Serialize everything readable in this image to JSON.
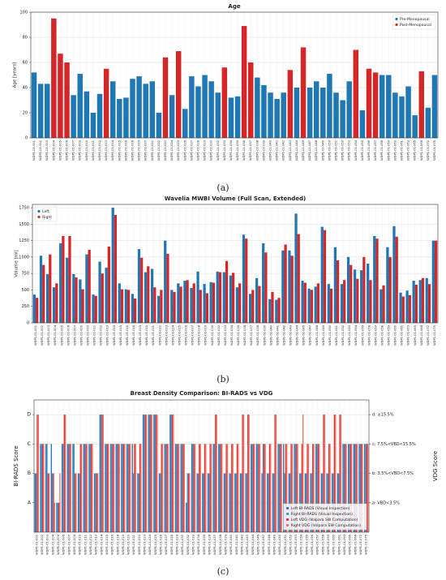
{
  "chart_data": [
    {
      "type": "bar",
      "title": "Age",
      "caption": "(a)",
      "y_label": "Age [years]",
      "barmode": "overlay",
      "grid": true,
      "legend": "upper right",
      "categories": [
        "WDP1-01-001",
        "WDP1-01-002",
        "WDP1-01-003",
        "WDP1-01-004",
        "WDP1-01-005",
        "WDP1-01-006",
        "WDP1-01-007",
        "WDP1-01-009",
        "WDP1-01-010",
        "WDP1-01-011",
        "WDP1-01-012",
        "WDP1-01-013",
        "WDP1-01-014",
        "WDP1-01-015",
        "WDP1-01-016",
        "WDP1-01-018",
        "WDP1-01-019",
        "WDP1-01-020",
        "WDP1-01-021",
        "WDP1-01-022",
        "WDP1-01-023",
        "WDP1-01-024",
        "WDP1-01-025",
        "WDP1-01-026",
        "WDP1-01-027",
        "WDP1-01-028",
        "WDP1-01-029",
        "WDP1-01-030",
        "WDP1-01-032",
        "WDP1-01-033",
        "WDP1-01-034",
        "WDP1-01-035",
        "WDP1-01-036",
        "WDP1-01-037",
        "WDP1-01-038",
        "WDP1-01-039",
        "WDP1-01-040",
        "WDP1-01-041",
        "WDP1-01-042",
        "WDP1-01-043",
        "WDP1-01-044",
        "WDP1-01-045",
        "WDP1-01-047",
        "WDP1-01-048",
        "WDP1-01-049",
        "WDP1-01-050",
        "WDP1-01-051",
        "WDP1-01-052",
        "WDP1-01-053",
        "WDP1-01-054",
        "WDP1-01-055",
        "WDP1-01-056",
        "WDP1-01-057",
        "WDP1-01-058",
        "WDP1-01-059",
        "WDP1-01-060",
        "WDP1-01-061",
        "WDP1-01-063",
        "WDP1-01-065",
        "WDP1-01-068",
        "WDP1-01-072",
        "WDP1-01-075"
      ],
      "ylim": [
        0,
        100
      ],
      "yticks": [
        0,
        20,
        40,
        60,
        80,
        100
      ],
      "series": [
        {
          "name": "Pre-Menopausal",
          "color": "#1f77b4",
          "values": [
            52,
            43,
            43,
            null,
            null,
            null,
            34,
            51,
            37,
            20,
            35,
            null,
            45,
            31,
            32,
            47,
            49,
            43,
            45,
            20,
            null,
            34,
            null,
            23,
            49,
            41,
            50,
            45,
            36,
            null,
            32,
            33,
            null,
            null,
            48,
            42,
            36,
            31,
            36,
            null,
            40,
            null,
            40,
            45,
            40,
            51,
            36,
            30,
            45,
            null,
            22,
            null,
            null,
            50,
            50,
            36,
            33,
            41,
            18,
            null,
            24,
            50
          ]
        },
        {
          "name": "Post-Menopausal",
          "color": "#d62728",
          "values": [
            null,
            null,
            null,
            95,
            67,
            60,
            null,
            null,
            null,
            null,
            null,
            55,
            null,
            null,
            null,
            null,
            null,
            null,
            null,
            null,
            64,
            null,
            69,
            null,
            null,
            null,
            null,
            null,
            null,
            56,
            null,
            null,
            89,
            60,
            null,
            null,
            null,
            null,
            null,
            54,
            null,
            72,
            null,
            null,
            null,
            null,
            null,
            null,
            null,
            70,
            null,
            55,
            52,
            null,
            null,
            null,
            null,
            null,
            null,
            53,
            null,
            null
          ]
        }
      ]
    },
    {
      "type": "bar",
      "title": "Wavelia MWBI Volume (Full Scan, Extended)",
      "caption": "(b)",
      "y_label": "Volume [ml]",
      "barmode": "group",
      "grid": true,
      "legend": "upper left",
      "categories": [
        "WDP1-01-001",
        "WDP1-01-002",
        "WDP1-01-003",
        "WDP1-01-004",
        "WDP1-01-005",
        "WDP1-01-006",
        "WDP1-01-007",
        "WDP1-01-009",
        "WDP1-01-010",
        "WDP1-01-011",
        "WDP1-01-012",
        "WDP1-01-013",
        "WDP1-01-014",
        "WDP1-01-015",
        "WDP1-01-016",
        "WDP1-01-018",
        "WDP1-01-019",
        "WDP1-01-020",
        "WDP1-01-021",
        "WDP1-01-022",
        "WDP1-01-023",
        "WDP1-01-024",
        "WDP1-01-025",
        "WDP1-01-026",
        "WDP1-01-027",
        "WDP1-01-028",
        "WDP1-01-029",
        "WDP1-01-030",
        "WDP1-01-032",
        "WDP1-01-033",
        "WDP1-01-034",
        "WDP1-01-035",
        "WDP1-01-036",
        "WDP1-01-037",
        "WDP1-01-038",
        "WDP1-01-039",
        "WDP1-01-040",
        "WDP1-01-041",
        "WDP1-01-042",
        "WDP1-01-043",
        "WDP1-01-044",
        "WDP1-01-045",
        "WDP1-01-047",
        "WDP1-01-048",
        "WDP1-01-049",
        "WDP1-01-050",
        "WDP1-01-051",
        "WDP1-01-052",
        "WDP1-01-053",
        "WDP1-01-054",
        "WDP1-01-055",
        "WDP1-01-056",
        "WDP1-01-057",
        "WDP1-01-058",
        "WDP1-01-059",
        "WDP1-01-060",
        "WDP1-01-061",
        "WDP1-01-063",
        "WDP1-01-065",
        "WDP1-01-068",
        "WDP1-01-072",
        "WDP1-01-075"
      ],
      "ylim": [
        0,
        1800
      ],
      "yticks": [
        0,
        250,
        500,
        750,
        1000,
        1250,
        1500,
        1750
      ],
      "series": [
        {
          "name": "Left",
          "color": "#1f77b4",
          "values": [
            430,
            1020,
            740,
            540,
            1210,
            990,
            740,
            660,
            1040,
            430,
            930,
            840,
            1750,
            600,
            510,
            440,
            1120,
            770,
            820,
            410,
            1250,
            500,
            600,
            640,
            530,
            780,
            590,
            620,
            780,
            770,
            720,
            540,
            1340,
            440,
            680,
            1210,
            360,
            350,
            1100,
            1100,
            1660,
            640,
            520,
            550,
            1460,
            590,
            1150,
            590,
            1000,
            810,
            800,
            900,
            1320,
            510,
            1150,
            1470,
            460,
            490,
            640,
            650,
            680,
            1250
          ]
        },
        {
          "name": "Right",
          "color": "#d62728",
          "values": [
            380,
            880,
            1040,
            600,
            1320,
            1320,
            690,
            510,
            1110,
            410,
            750,
            1160,
            1640,
            510,
            500,
            370,
            990,
            860,
            540,
            500,
            1050,
            470,
            550,
            650,
            600,
            500,
            450,
            610,
            770,
            940,
            760,
            600,
            1280,
            500,
            560,
            1070,
            470,
            380,
            1190,
            1020,
            1350,
            610,
            500,
            600,
            1410,
            520,
            950,
            650,
            880,
            670,
            1000,
            650,
            1280,
            570,
            1000,
            1310,
            400,
            420,
            580,
            680,
            590,
            1250
          ]
        }
      ]
    },
    {
      "type": "bar",
      "title": "Breast Density Comparison: BI-RADS vs VDG",
      "caption": "(c)",
      "y_label": "BI-RADS Score",
      "y2_label": "VDG Score",
      "barmode": "group",
      "grid": true,
      "legend": "lower right",
      "categories": [
        "WDP1-01-001",
        "WDP1-01-002",
        "WDP1-01-003",
        "WDP1-01-004",
        "WDP1-01-005",
        "WDP1-01-006",
        "WDP1-01-007",
        "WDP1-01-009",
        "WDP1-01-010",
        "WDP1-01-011",
        "WDP1-01-012",
        "WDP1-01-013",
        "WDP1-01-014",
        "WDP1-01-015",
        "WDP1-01-016",
        "WDP1-01-018",
        "WDP1-01-019",
        "WDP1-01-020",
        "WDP1-01-021",
        "WDP1-01-022",
        "WDP1-01-023",
        "WDP1-01-024",
        "WDP1-01-025",
        "WDP1-01-026",
        "WDP1-01-027",
        "WDP1-01-028",
        "WDP1-01-029",
        "WDP1-01-030",
        "WDP1-01-032",
        "WDP1-01-033",
        "WDP1-01-034",
        "WDP1-01-035",
        "WDP1-01-036",
        "WDP1-01-037",
        "WDP1-01-038",
        "WDP1-01-039",
        "WDP1-01-040",
        "WDP1-01-041",
        "WDP1-01-042",
        "WDP1-01-043",
        "WDP1-01-044",
        "WDP1-01-045",
        "WDP1-01-047",
        "WDP1-01-048",
        "WDP1-01-049",
        "WDP1-01-050",
        "WDP1-01-051",
        "WDP1-01-052",
        "WDP1-01-053",
        "WDP1-01-054",
        "WDP1-01-055",
        "WDP1-01-056",
        "WDP1-01-057",
        "WDP1-01-058",
        "WDP1-01-059",
        "WDP1-01-060",
        "WDP1-01-061",
        "WDP1-01-063",
        "WDP1-01-065",
        "WDP1-01-068",
        "WDP1-01-072",
        "WDP1-01-075"
      ],
      "ylim": [
        0,
        4.5
      ],
      "yticks": [
        {
          "value": 1,
          "label": "A"
        },
        {
          "value": 2,
          "label": "B"
        },
        {
          "value": 3,
          "label": "C"
        },
        {
          "value": 4,
          "label": "D"
        }
      ],
      "y2lim": [
        0,
        4.5
      ],
      "y2ticks": [
        {
          "value": 1,
          "label": "a: VBD<3.5%"
        },
        {
          "value": 2,
          "label": "b: 3.5%<VBD<7.5%"
        },
        {
          "value": 3,
          "label": "c: 7.5%<VBD<15.5%"
        },
        {
          "value": 4,
          "label": "d: ≥15.5%"
        }
      ],
      "series": [
        {
          "name": "Left BI-RADS (Visual Inspection)",
          "color": "#1f77b4",
          "values": [
            2,
            3,
            3,
            3,
            1,
            3,
            3,
            3,
            2,
            3,
            3,
            2,
            4,
            3,
            3,
            3,
            3,
            3,
            3,
            2,
            4,
            4,
            4,
            2,
            3,
            4,
            3,
            3,
            1,
            3,
            2,
            2,
            2,
            3,
            3,
            2,
            2,
            2,
            2,
            2,
            3,
            3,
            2,
            2,
            2,
            3,
            3,
            2,
            3,
            2,
            2,
            2,
            3,
            2,
            2,
            2,
            2,
            3,
            3,
            3,
            3,
            3
          ]
        },
        {
          "name": "Right BI-RADS (Visual Inspection)",
          "color": "#3a8fd0",
          "values": [
            2,
            3,
            3,
            2,
            1,
            3,
            3,
            3,
            2,
            3,
            3,
            2,
            4,
            3,
            3,
            3,
            3,
            3,
            2,
            2,
            4,
            4,
            4,
            2,
            3,
            4,
            3,
            3,
            2,
            3,
            2,
            2,
            2,
            3,
            3,
            2,
            2,
            2,
            2,
            2,
            3,
            3,
            3,
            2,
            2,
            3,
            2,
            2,
            3,
            2,
            2,
            2,
            3,
            2,
            2,
            2,
            2,
            3,
            3,
            3,
            3,
            3
          ]
        },
        {
          "name": "Left VDG (Volpara SW Computation)",
          "color": "#e8312a",
          "axis": "y2",
          "values": [
            4,
            3,
            2,
            2,
            1,
            4,
            3,
            2,
            3,
            3,
            3,
            2,
            4,
            3,
            3,
            3,
            3,
            3,
            3,
            3,
            4,
            4,
            4,
            3,
            3,
            4,
            3,
            3,
            2,
            3,
            3,
            3,
            3,
            4,
            3,
            3,
            3,
            3,
            4,
            4,
            3,
            3,
            3,
            3,
            4,
            3,
            3,
            3,
            3,
            3,
            3,
            3,
            3,
            4,
            3,
            4,
            4,
            3,
            3,
            3,
            3,
            3
          ]
        },
        {
          "name": "Right VDG (Volpara SW Computation)",
          "color": "#f26a5f",
          "axis": "y2",
          "values": [
            4,
            3,
            2,
            1,
            2,
            4,
            3,
            2,
            3,
            3,
            3,
            2,
            4,
            3,
            3,
            3,
            3,
            3,
            3,
            3,
            4,
            4,
            4,
            3,
            3,
            4,
            3,
            3,
            2,
            3,
            3,
            3,
            3,
            4,
            3,
            3,
            3,
            3,
            4,
            4,
            3,
            3,
            3,
            3,
            4,
            3,
            3,
            3,
            3,
            4,
            3,
            3,
            3,
            4,
            3,
            4,
            4,
            3,
            3,
            3,
            3,
            3
          ]
        }
      ]
    }
  ]
}
